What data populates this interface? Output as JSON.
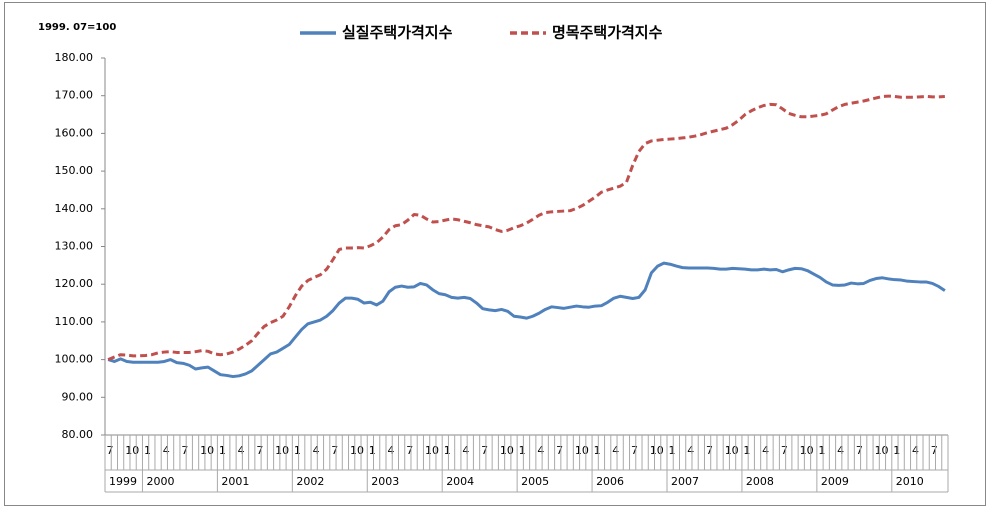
{
  "chart_data": {
    "type": "line",
    "annotation": "1999. 07=100",
    "categories": [
      "7",
      null,
      null,
      "10",
      null,
      null,
      "1",
      null,
      null,
      "4",
      null,
      null,
      "7",
      null,
      null,
      "10",
      null,
      null,
      "1",
      null,
      null,
      "4",
      null,
      null,
      "7",
      null,
      null,
      "10",
      null,
      null,
      "1",
      null,
      null,
      "4",
      null,
      null,
      "7",
      null,
      null,
      "10",
      null,
      null,
      "1",
      null,
      null,
      "4",
      null,
      null,
      "7",
      null,
      null,
      "10",
      null,
      null,
      "1",
      null,
      null,
      "4",
      null,
      null,
      "7",
      null,
      null,
      "10",
      null,
      null,
      "1",
      null,
      null,
      "4",
      null,
      null,
      "7",
      null,
      null,
      "10",
      null,
      null,
      "1",
      null,
      null,
      "4",
      null,
      null,
      "7",
      null,
      null,
      "10",
      null,
      null,
      "1",
      null,
      null,
      "4",
      null,
      null,
      "7",
      null,
      null,
      "10",
      null,
      null,
      "1",
      null,
      null,
      "4",
      null,
      null,
      "7",
      null,
      null,
      "10",
      null,
      null,
      "1",
      null,
      null,
      "4",
      null,
      null,
      "7",
      null,
      null,
      "10",
      null,
      null,
      "1",
      null,
      null,
      "4",
      null,
      null,
      "7",
      null,
      null
    ],
    "years": [
      "1999",
      "2000",
      "2001",
      "2002",
      "2003",
      "2004",
      "2005",
      "2006",
      "2007",
      "2008",
      "2009",
      "2010"
    ],
    "series": [
      {
        "name": "실질주택가격지수",
        "color": "#4f81bd",
        "style": "solid",
        "values": [
          100,
          99.5,
          100.2,
          99.5,
          99.3,
          99.3,
          99.3,
          99.3,
          99.3,
          99.5,
          100,
          99.2,
          99,
          98.5,
          97.5,
          97.8,
          98,
          97,
          96,
          95.8,
          95.5,
          95.7,
          96.2,
          97,
          98.5,
          100,
          101.5,
          102,
          103,
          104,
          106,
          108,
          109.5,
          110,
          110.5,
          111.5,
          113,
          115,
          116.3,
          116.3,
          116,
          115,
          115.2,
          114.5,
          115.5,
          118,
          119.2,
          119.5,
          119.2,
          119.3,
          120.2,
          119.8,
          118.5,
          117.5,
          117.2,
          116.5,
          116.3,
          116.5,
          116.2,
          115,
          113.5,
          113.2,
          113,
          113.3,
          112.8,
          111.5,
          111.3,
          111,
          111.5,
          112.3,
          113.3,
          114,
          113.8,
          113.6,
          113.9,
          114.2,
          114,
          113.9,
          114.2,
          114.3,
          115.2,
          116.3,
          116.8,
          116.5,
          116.2,
          116.5,
          118.5,
          123,
          124.8,
          125.6,
          125.3,
          124.8,
          124.4,
          124.3,
          124.3,
          124.3,
          124.3,
          124.2,
          124,
          124,
          124.2,
          124.1,
          124,
          123.8,
          123.8,
          124,
          123.8,
          123.9,
          123.3,
          123.8,
          124.2,
          124.1,
          123.6,
          122.7,
          121.8,
          120.6,
          119.8,
          119.7,
          119.8,
          120.3,
          120.1,
          120.2,
          121,
          121.5,
          121.7,
          121.4,
          121.2,
          121.1,
          120.8,
          120.7,
          120.6,
          120.6,
          120.2,
          119.4,
          118.3
        ]
      },
      {
        "name": "명목주택가격지수",
        "color": "#c0504d",
        "style": "dashed",
        "values": [
          100,
          100.7,
          101.3,
          101.2,
          101,
          101,
          101.1,
          101.3,
          101.8,
          102,
          102.1,
          101.9,
          101.9,
          101.9,
          102.1,
          102.4,
          102.2,
          101.5,
          101.3,
          101.5,
          102,
          102.8,
          103.8,
          105,
          107,
          108.8,
          109.8,
          110.5,
          111.5,
          114,
          117,
          119.5,
          121,
          121.8,
          122.5,
          124,
          126.5,
          129.2,
          129.6,
          129.6,
          129.7,
          129.6,
          130.2,
          131,
          132.5,
          134.5,
          135.5,
          135.8,
          137,
          138.5,
          138.3,
          137.3,
          136.5,
          136.6,
          137,
          137.3,
          137.1,
          136.7,
          136.3,
          135.8,
          135.5,
          135.2,
          134.5,
          134,
          134.3,
          135,
          135.5,
          136.2,
          137.2,
          138.3,
          139,
          139.2,
          139.3,
          139.4,
          139.5,
          140.1,
          140.9,
          142,
          143.1,
          144.4,
          145,
          145.5,
          146,
          147,
          151.5,
          155.2,
          157.3,
          158,
          158.2,
          158.4,
          158.5,
          158.6,
          158.8,
          159,
          159.3,
          159.7,
          160.2,
          160.6,
          161,
          161.4,
          162.3,
          163.5,
          165,
          166,
          166.8,
          167.4,
          167.7,
          167.6,
          166.5,
          165.3,
          164.8,
          164.4,
          164.4,
          164.6,
          164.8,
          165.2,
          166.2,
          167.1,
          167.7,
          168,
          168.3,
          168.6,
          169,
          169.4,
          169.8,
          169.9,
          169.8,
          169.6,
          169.6,
          169.6,
          169.7,
          169.8,
          169.7,
          169.7,
          169.8
        ]
      }
    ],
    "ylim": [
      80,
      180
    ],
    "yticks": [
      {
        "value": 80,
        "label": "80.00"
      },
      {
        "value": 90,
        "label": "90.00"
      },
      {
        "value": 100,
        "label": "100.00"
      },
      {
        "value": 110,
        "label": "110.00"
      },
      {
        "value": 120,
        "label": "120.00"
      },
      {
        "value": 130,
        "label": "130.00"
      },
      {
        "value": 140,
        "label": "140.00"
      },
      {
        "value": 150,
        "label": "150.00"
      },
      {
        "value": 160,
        "label": "160.00"
      },
      {
        "value": 170,
        "label": "170.00"
      },
      {
        "value": 180,
        "label": "180.00"
      }
    ],
    "grid": false,
    "legend": "top"
  }
}
